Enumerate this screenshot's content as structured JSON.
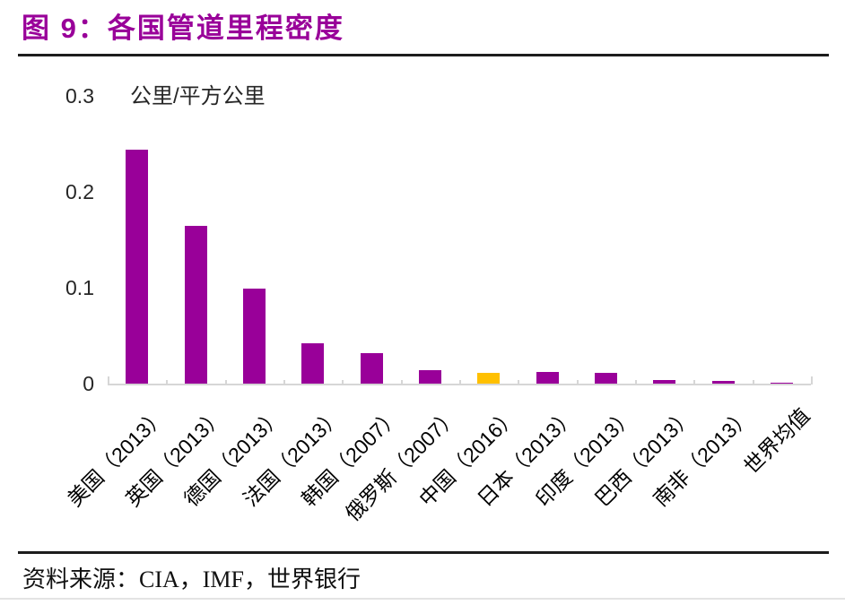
{
  "title": "图 9：各国管道里程密度",
  "chart_data": {
    "type": "bar",
    "title": "各国管道里程密度",
    "unit_label": "公里/平方公里",
    "categories": [
      "美国（2013）",
      "英国（2013）",
      "德国（2013）",
      "法国（2013）",
      "韩国（2007）",
      "俄罗斯（2007）",
      "中国（2016）",
      "日本（2013）",
      "印度（2013）",
      "巴西（2013）",
      "南非（2013）",
      "世界均值"
    ],
    "values": [
      0.245,
      0.165,
      0.1,
      0.043,
      0.033,
      0.015,
      0.012,
      0.013,
      0.012,
      0.005,
      0.004,
      0.002
    ],
    "highlight_index": 6,
    "highlight_category": "中国（2016）",
    "ytick_values": [
      0,
      0.1,
      0.2,
      0.3
    ],
    "ytick_labels": [
      "0",
      "0.1",
      "0.2",
      "0.3"
    ],
    "ylim": [
      0,
      0.3
    ],
    "grid": "off",
    "legend": "none",
    "colors": {
      "bar": "#990099",
      "highlight": "#FFC000",
      "axis": "#d6d6d6",
      "title": "#990099"
    }
  },
  "source": "资料来源：CIA，IMF，世界银行"
}
